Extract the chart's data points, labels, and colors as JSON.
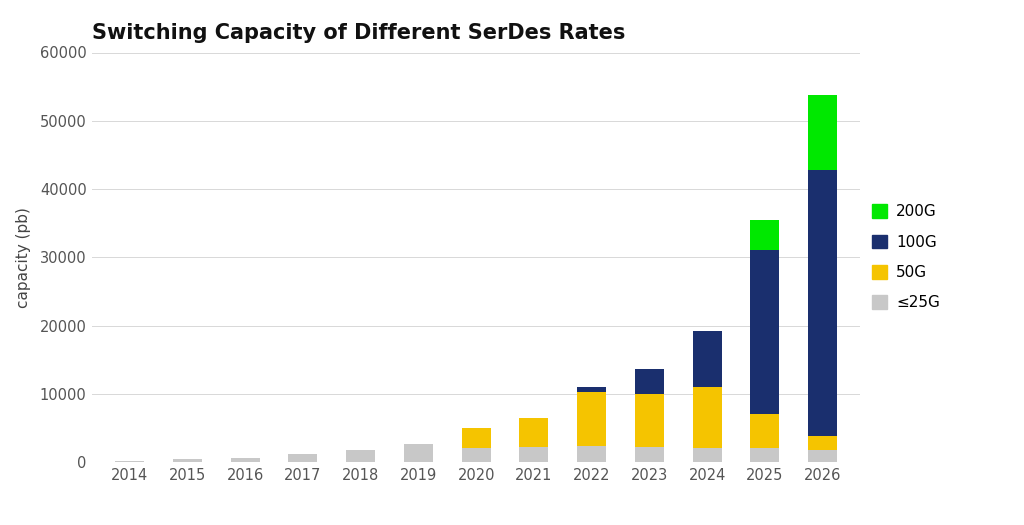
{
  "title": "Switching Capacity of Different SerDes Rates",
  "years": [
    2014,
    2015,
    2016,
    2017,
    2018,
    2019,
    2020,
    2021,
    2022,
    2023,
    2024,
    2025,
    2026
  ],
  "le25g": [
    100,
    400,
    600,
    1200,
    1800,
    2600,
    2000,
    2200,
    2400,
    2200,
    2000,
    2000,
    1800
  ],
  "g50": [
    0,
    0,
    0,
    0,
    0,
    0,
    3000,
    4200,
    7800,
    7800,
    9000,
    5000,
    2000
  ],
  "g100": [
    0,
    0,
    0,
    0,
    0,
    0,
    0,
    0,
    800,
    3600,
    8200,
    24000,
    39000
  ],
  "g200": [
    0,
    0,
    0,
    0,
    0,
    0,
    0,
    0,
    0,
    0,
    0,
    4500,
    11000
  ],
  "color_le25g": "#c8c8c8",
  "color_50g": "#f5c400",
  "color_100g": "#1a2f6e",
  "color_200g": "#00e800",
  "ylabel": "capacity (pb)",
  "ylim": [
    0,
    60000
  ],
  "yticks": [
    0,
    10000,
    20000,
    30000,
    40000,
    50000,
    60000
  ],
  "background_color": "#ffffff",
  "legend_labels": [
    "200G",
    "100G",
    "50G",
    "≤25G"
  ],
  "bar_width": 0.5,
  "figsize": [
    10.24,
    5.25
  ],
  "dpi": 100
}
